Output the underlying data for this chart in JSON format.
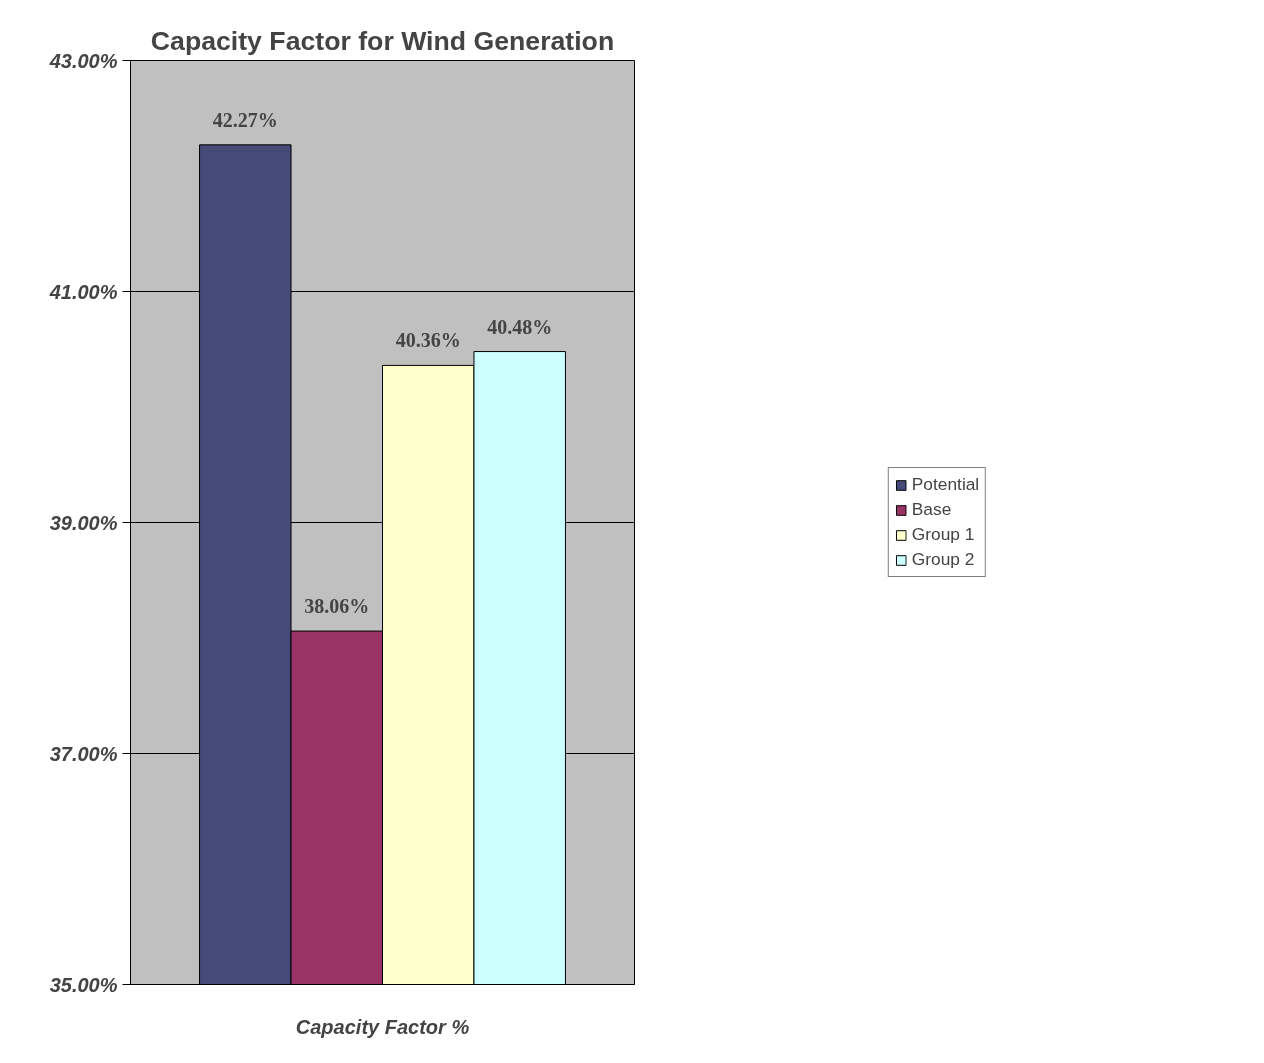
{
  "chart_data": {
    "type": "bar",
    "title": "Capacity Factor for Wind Generation",
    "categories": [
      "Capacity Factor %"
    ],
    "series": [
      {
        "name": "Potential",
        "color": "#464a78",
        "values": [
          42.27
        ],
        "value_labels": [
          "42.27%"
        ]
      },
      {
        "name": "Base",
        "color": "#993366",
        "values": [
          38.06
        ],
        "value_labels": [
          "38.06%"
        ]
      },
      {
        "name": "Group 1",
        "color": "#ffffcc",
        "values": [
          40.36
        ],
        "value_labels": [
          "40.36%"
        ]
      },
      {
        "name": "Group 2",
        "color": "#ccffff",
        "values": [
          40.48
        ],
        "value_labels": [
          "40.48%"
        ]
      }
    ],
    "ylim": [
      35,
      43
    ],
    "yticks": [
      {
        "value": 35,
        "label": "35.00%"
      },
      {
        "value": 37,
        "label": "37.00%"
      },
      {
        "value": 39,
        "label": "39.00%"
      },
      {
        "value": 41,
        "label": "41.00%"
      },
      {
        "value": 43,
        "label": "43.00%"
      }
    ],
    "grid": "y",
    "legend": "right"
  }
}
